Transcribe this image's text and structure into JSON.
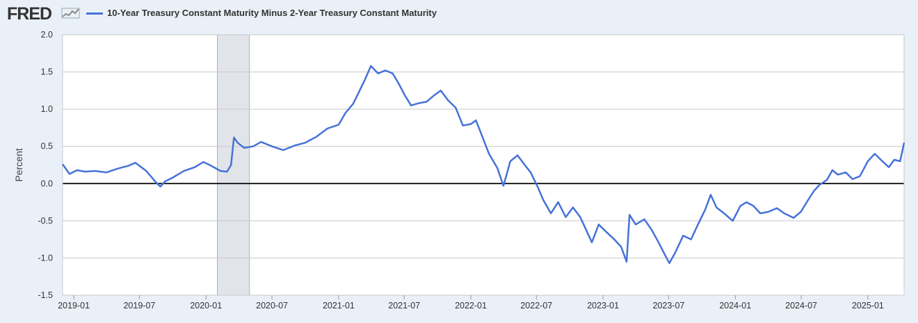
{
  "header": {
    "logo_text": "FRED",
    "logo_icon": "chart-line-icon",
    "series_color": "#4572d8"
  },
  "chart_data": {
    "type": "line",
    "title": "",
    "xlabel": "",
    "ylabel": "Percent",
    "ylim": [
      -1.5,
      2.0
    ],
    "xlim": [
      "2018-12-01",
      "2025-04-11"
    ],
    "y_ticks": [
      "2.0",
      "1.5",
      "1.0",
      "0.5",
      "0.0",
      "-0.5",
      "-1.0",
      "-1.5"
    ],
    "x_ticks": [
      "2019-01",
      "2019-07",
      "2020-01",
      "2020-07",
      "2021-01",
      "2021-07",
      "2022-01",
      "2022-07",
      "2023-01",
      "2023-07",
      "2024-01",
      "2024-07",
      "2025-01"
    ],
    "grid": true,
    "legend_position": "top-left",
    "recessions": [
      {
        "start": "2020-02-01",
        "end": "2020-04-30"
      }
    ],
    "series": [
      {
        "name": "10-Year Treasury Constant Maturity Minus 2-Year Treasury Constant Maturity",
        "color": "#4572d8",
        "points": [
          [
            "2018-12-01",
            0.26
          ],
          [
            "2018-12-20",
            0.13
          ],
          [
            "2019-01-10",
            0.18
          ],
          [
            "2019-02-01",
            0.16
          ],
          [
            "2019-03-01",
            0.17
          ],
          [
            "2019-04-01",
            0.15
          ],
          [
            "2019-05-01",
            0.2
          ],
          [
            "2019-06-01",
            0.24
          ],
          [
            "2019-06-20",
            0.28
          ],
          [
            "2019-07-20",
            0.17
          ],
          [
            "2019-08-15",
            0.02
          ],
          [
            "2019-08-28",
            -0.04
          ],
          [
            "2019-09-10",
            0.03
          ],
          [
            "2019-10-01",
            0.08
          ],
          [
            "2019-11-01",
            0.17
          ],
          [
            "2019-12-01",
            0.22
          ],
          [
            "2019-12-25",
            0.29
          ],
          [
            "2020-01-15",
            0.24
          ],
          [
            "2020-02-10",
            0.17
          ],
          [
            "2020-02-28",
            0.16
          ],
          [
            "2020-03-10",
            0.25
          ],
          [
            "2020-03-18",
            0.62
          ],
          [
            "2020-03-28",
            0.55
          ],
          [
            "2020-04-15",
            0.48
          ],
          [
            "2020-05-10",
            0.5
          ],
          [
            "2020-06-01",
            0.56
          ],
          [
            "2020-07-01",
            0.5
          ],
          [
            "2020-08-01",
            0.45
          ],
          [
            "2020-09-01",
            0.51
          ],
          [
            "2020-10-01",
            0.55
          ],
          [
            "2020-11-01",
            0.63
          ],
          [
            "2020-12-01",
            0.74
          ],
          [
            "2021-01-01",
            0.79
          ],
          [
            "2021-01-20",
            0.95
          ],
          [
            "2021-02-10",
            1.07
          ],
          [
            "2021-02-28",
            1.25
          ],
          [
            "2021-03-15",
            1.4
          ],
          [
            "2021-03-31",
            1.58
          ],
          [
            "2021-04-20",
            1.48
          ],
          [
            "2021-05-10",
            1.52
          ],
          [
            "2021-05-30",
            1.48
          ],
          [
            "2021-06-15",
            1.35
          ],
          [
            "2021-07-01",
            1.2
          ],
          [
            "2021-07-20",
            1.05
          ],
          [
            "2021-08-10",
            1.08
          ],
          [
            "2021-09-01",
            1.1
          ],
          [
            "2021-09-20",
            1.18
          ],
          [
            "2021-10-10",
            1.25
          ],
          [
            "2021-10-30",
            1.12
          ],
          [
            "2021-11-20",
            1.02
          ],
          [
            "2021-12-10",
            0.78
          ],
          [
            "2022-01-01",
            0.8
          ],
          [
            "2022-01-15",
            0.85
          ],
          [
            "2022-02-01",
            0.64
          ],
          [
            "2022-02-20",
            0.4
          ],
          [
            "2022-03-15",
            0.21
          ],
          [
            "2022-04-01",
            -0.03
          ],
          [
            "2022-04-20",
            0.3
          ],
          [
            "2022-05-10",
            0.38
          ],
          [
            "2022-05-30",
            0.25
          ],
          [
            "2022-06-15",
            0.15
          ],
          [
            "2022-07-05",
            -0.05
          ],
          [
            "2022-07-20",
            -0.22
          ],
          [
            "2022-08-10",
            -0.4
          ],
          [
            "2022-08-30",
            -0.25
          ],
          [
            "2022-09-20",
            -0.45
          ],
          [
            "2022-10-10",
            -0.32
          ],
          [
            "2022-10-30",
            -0.45
          ],
          [
            "2022-11-15",
            -0.62
          ],
          [
            "2022-12-01",
            -0.79
          ],
          [
            "2022-12-20",
            -0.55
          ],
          [
            "2023-01-10",
            -0.65
          ],
          [
            "2023-02-01",
            -0.75
          ],
          [
            "2023-02-20",
            -0.85
          ],
          [
            "2023-03-07",
            -1.05
          ],
          [
            "2023-03-15",
            -0.42
          ],
          [
            "2023-04-01",
            -0.55
          ],
          [
            "2023-04-25",
            -0.48
          ],
          [
            "2023-05-15",
            -0.62
          ],
          [
            "2023-06-01",
            -0.77
          ],
          [
            "2023-06-20",
            -0.95
          ],
          [
            "2023-07-03",
            -1.07
          ],
          [
            "2023-07-20",
            -0.92
          ],
          [
            "2023-08-10",
            -0.7
          ],
          [
            "2023-09-01",
            -0.75
          ],
          [
            "2023-09-20",
            -0.55
          ],
          [
            "2023-10-10",
            -0.35
          ],
          [
            "2023-10-25",
            -0.15
          ],
          [
            "2023-11-10",
            -0.32
          ],
          [
            "2023-12-01",
            -0.4
          ],
          [
            "2023-12-25",
            -0.5
          ],
          [
            "2024-01-15",
            -0.3
          ],
          [
            "2024-02-01",
            -0.25
          ],
          [
            "2024-02-20",
            -0.3
          ],
          [
            "2024-03-10",
            -0.4
          ],
          [
            "2024-04-01",
            -0.38
          ],
          [
            "2024-04-25",
            -0.33
          ],
          [
            "2024-05-15",
            -0.4
          ],
          [
            "2024-06-10",
            -0.46
          ],
          [
            "2024-06-30",
            -0.38
          ],
          [
            "2024-07-20",
            -0.22
          ],
          [
            "2024-08-05",
            -0.1
          ],
          [
            "2024-08-20",
            -0.02
          ],
          [
            "2024-09-10",
            0.05
          ],
          [
            "2024-09-25",
            0.18
          ],
          [
            "2024-10-10",
            0.12
          ],
          [
            "2024-11-01",
            0.15
          ],
          [
            "2024-11-20",
            0.06
          ],
          [
            "2024-12-10",
            0.1
          ],
          [
            "2025-01-01",
            0.3
          ],
          [
            "2025-01-20",
            0.4
          ],
          [
            "2025-02-10",
            0.3
          ],
          [
            "2025-02-28",
            0.22
          ],
          [
            "2025-03-15",
            0.32
          ],
          [
            "2025-03-31",
            0.3
          ],
          [
            "2025-04-11",
            0.55
          ]
        ]
      }
    ]
  }
}
